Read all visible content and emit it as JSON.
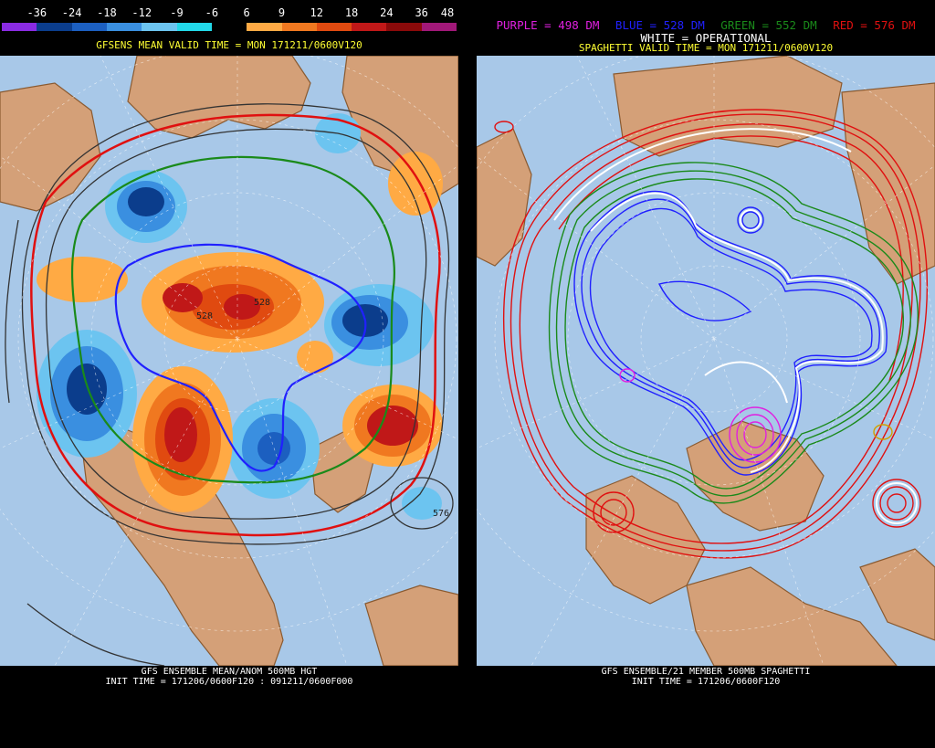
{
  "left_panel": {
    "scale": {
      "labels": [
        "-36",
        "-24",
        "-18",
        "-12",
        "-9",
        "-6",
        "6",
        "9",
        "12",
        "18",
        "24",
        "36",
        "48"
      ],
      "colors": [
        "#8a2be2",
        "#0b3d8c",
        "#1c5fc0",
        "#3a8fe0",
        "#6cc4f0",
        "#22d8e8",
        "#000000",
        "#ffaa44",
        "#f07820",
        "#e04a10",
        "#c01818",
        "#8a0a0a",
        "#a01878"
      ]
    },
    "header": "GFSENS MEAN VALID TIME = MON 171211/0600V120",
    "contour_labels": [
      "528",
      "528",
      "576"
    ],
    "footer_line1": "GFS ENSEMBLE MEAN/ANOM 500MB HGT",
    "footer_line2": "INIT TIME = 171206/0600F120 : 091211/0600F000"
  },
  "right_panel": {
    "legend": {
      "purple": "PURPLE = 498 DM",
      "blue": "BLUE = 528 DM",
      "green": "GREEN = 552 DM",
      "red": "RED = 576 DM",
      "white": "WHITE = OPERATIONAL",
      "purple_color": "#e020e0",
      "blue_color": "#2020ff",
      "green_color": "#1a8a1a",
      "red_color": "#e01010"
    },
    "header": "SPAGHETTI VALID TIME = MON 171211/0600V120",
    "footer_line1": "GFS ENSEMBLE/21 MEMBER 500MB SPAGHETTI",
    "footer_line2": "INIT TIME = 171206/0600F120"
  },
  "colors": {
    "ocean": "#a8c8e8",
    "land": "#d4a078",
    "coast": "#8a5a30",
    "grid": "#ffffff"
  }
}
